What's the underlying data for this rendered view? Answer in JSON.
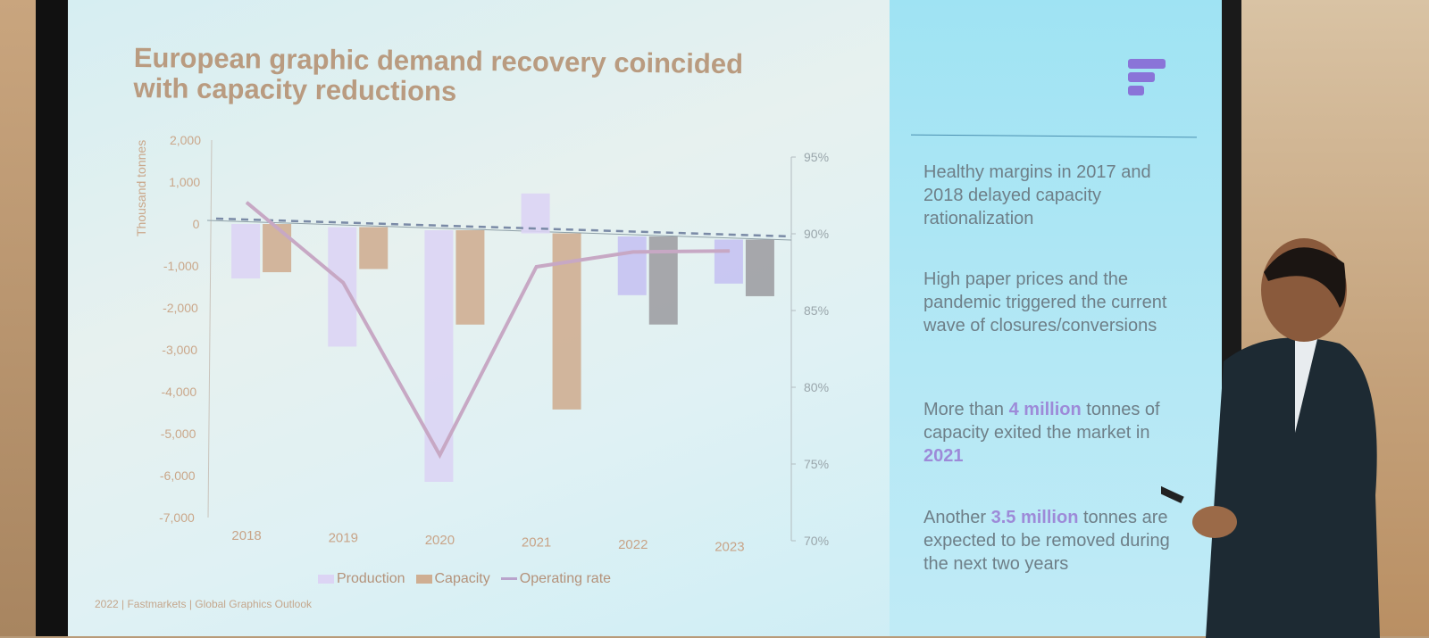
{
  "slide": {
    "title_line1": "European graphic demand recovery coincided",
    "title_line2": "with capacity reductions",
    "footer": "2022 | Fastmarkets | Global Graphics Outlook",
    "logo_icon": "fastmarkets-logo-icon",
    "accent_color": "#9d8ad8",
    "bullets": [
      {
        "text_before": "Healthy margins in 2017 and 2018 delayed capacity rationalization",
        "bold": "",
        "text_mid": "",
        "bold2": "",
        "text_after": ""
      },
      {
        "text_before": "High paper prices and the pandemic triggered the current wave of closures/conversions",
        "bold": "",
        "text_mid": "",
        "bold2": "",
        "text_after": ""
      },
      {
        "text_before": "More than ",
        "bold": "4 million",
        "text_mid": " tonnes of capacity exited the market in ",
        "bold2": "2021",
        "text_after": ""
      },
      {
        "text_before": "Another ",
        "bold": "3.5 million",
        "text_mid": " tonnes are expected to be removed during the next two years",
        "bold2": "",
        "text_after": ""
      }
    ]
  },
  "chart_data": {
    "type": "bar",
    "title": "",
    "ylabel": "Thousand tonnes",
    "y2label": "",
    "categories": [
      "2018",
      "2019",
      "2020",
      "2021",
      "2022",
      "2023"
    ],
    "ylim": [
      -7000,
      2000
    ],
    "yticks": [
      "2,000",
      "1,000",
      "0",
      "-1,000",
      "-2,000",
      "-3,000",
      "-4,000",
      "-5,000",
      "-6,000",
      "-7,000"
    ],
    "y2lim": [
      70,
      95
    ],
    "y2ticks": [
      "95%",
      "90%",
      "85%",
      "80%",
      "75%",
      "70%"
    ],
    "series": [
      {
        "name": "Production",
        "type": "bar",
        "color": "#dcd4f4",
        "values": [
          -1300,
          -2850,
          -6000,
          950,
          -1400,
          -1050
        ]
      },
      {
        "name": "Capacity",
        "type": "bar",
        "color": "#cfae92",
        "values": [
          -1150,
          -1000,
          -2250,
          -4200,
          -2100,
          -1350
        ]
      },
      {
        "name": "Operating rate",
        "type": "line",
        "axis": "right",
        "color": "#c7a8c4",
        "values": [
          91,
          86,
          75,
          87.5,
          88.7,
          89
        ]
      }
    ],
    "reference_line": {
      "style": "dashed",
      "axis": "right",
      "value": 90,
      "color": "#7a8aa6"
    },
    "legend": "bottom",
    "grid": false
  }
}
